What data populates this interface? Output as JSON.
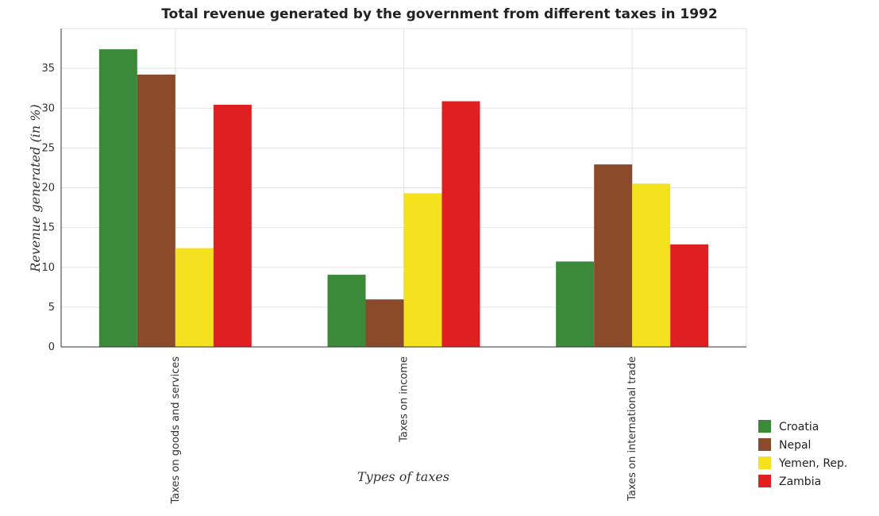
{
  "chart_data": {
    "type": "bar",
    "title": "Total revenue generated by the government from different taxes in 1992",
    "xlabel": "Types of taxes",
    "ylabel": "Revenue generated (in %)",
    "ylim": [
      0,
      40
    ],
    "yticks": [
      0,
      5,
      10,
      15,
      20,
      25,
      30,
      35
    ],
    "grid": true,
    "legend_position": "bottom-right",
    "categories": [
      "Taxes on goods and services",
      "Taxes on income",
      "Taxes on international trade"
    ],
    "series": [
      {
        "name": "Croatia",
        "color": "#3a8a3a",
        "values": [
          37.4,
          9.07,
          10.73
        ]
      },
      {
        "name": "Nepal",
        "color": "#8b4a2a",
        "values": [
          34.22,
          5.97,
          22.93
        ]
      },
      {
        "name": "Yemen, Rep.",
        "color": "#f5e21e",
        "values": [
          12.42,
          19.31,
          20.52
        ]
      },
      {
        "name": "Zambia",
        "color": "#e02020",
        "values": [
          30.43,
          30.87,
          12.88
        ]
      }
    ]
  }
}
